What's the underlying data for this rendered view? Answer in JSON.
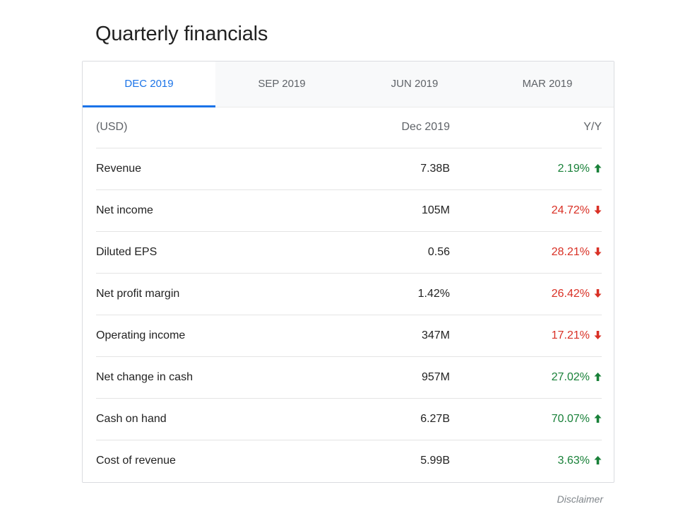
{
  "page": {
    "title": "Quarterly financials",
    "disclaimer": "Disclaimer"
  },
  "tabs": [
    {
      "label": "DEC 2019",
      "active": true
    },
    {
      "label": "SEP 2019",
      "active": false
    },
    {
      "label": "JUN 2019",
      "active": false
    },
    {
      "label": "MAR 2019",
      "active": false
    }
  ],
  "table": {
    "header": {
      "label": "(USD)",
      "period": "Dec 2019",
      "change": "Y/Y"
    },
    "rows": [
      {
        "label": "Revenue",
        "value": "7.38B",
        "change": "2.19%",
        "direction": "up"
      },
      {
        "label": "Net income",
        "value": "105M",
        "change": "24.72%",
        "direction": "down"
      },
      {
        "label": "Diluted EPS",
        "value": "0.56",
        "change": "28.21%",
        "direction": "down"
      },
      {
        "label": "Net profit margin",
        "value": "1.42%",
        "change": "26.42%",
        "direction": "down"
      },
      {
        "label": "Operating income",
        "value": "347M",
        "change": "17.21%",
        "direction": "down"
      },
      {
        "label": "Net change in cash",
        "value": "957M",
        "change": "27.02%",
        "direction": "up"
      },
      {
        "label": "Cash on hand",
        "value": "6.27B",
        "change": "70.07%",
        "direction": "up"
      },
      {
        "label": "Cost of revenue",
        "value": "5.99B",
        "change": "3.63%",
        "direction": "up"
      }
    ]
  },
  "colors": {
    "accent": "#1a73e8",
    "positive": "#188038",
    "negative": "#d93025"
  }
}
